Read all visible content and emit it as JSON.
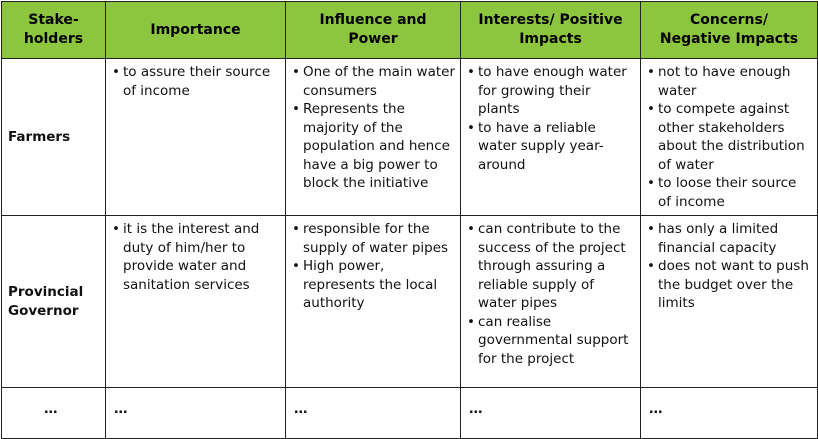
{
  "headers": [
    "Stake-\nholders",
    "Importance",
    "Influence and Power",
    "Interests/ Positive Impacts",
    "Concerns/ Negative Impacts"
  ],
  "header_lines": [
    [
      "Stake-",
      "holders"
    ],
    [
      "Importance"
    ],
    [
      "Influence and",
      "Power"
    ],
    [
      "Interests/ Positive",
      "Impacts"
    ],
    [
      "Concerns/",
      "Negative Impacts"
    ]
  ],
  "rows": [
    {
      "stakeholder": [
        "Farmers"
      ],
      "importance": [
        "to assure their source of income"
      ],
      "influence": [
        "One of the main water consumers",
        "Represents the majority of the population and hence have a big power to block the initiative"
      ],
      "interests": [
        "to have enough water for growing their plants",
        "to have a reliable water supply year-around"
      ],
      "concerns": [
        "not to have enough water",
        "to compete against other stakeholders about the distribution of water",
        "to loose their source of income"
      ]
    },
    {
      "stakeholder": [
        "Provincial",
        "Governor"
      ],
      "importance": [
        "it is the interest and duty of him/her to provide water and sanitation services"
      ],
      "influence": [
        "responsible for the supply of water pipes",
        "High power, represents the local authority"
      ],
      "interests": [
        "can contribute to the success of the project through assuring a reliable supply of water pipes",
        "can realise governmental support for the project"
      ],
      "concerns": [
        "has only a limited financial capacity",
        "does not want to push the budget over the limits"
      ]
    },
    {
      "stakeholder": "…",
      "importance": "…",
      "influence": "…",
      "interests": "…",
      "concerns": "…"
    }
  ],
  "bullet": "•",
  "colors": {
    "header_bg": "#8cc63f",
    "border": "#222222"
  }
}
